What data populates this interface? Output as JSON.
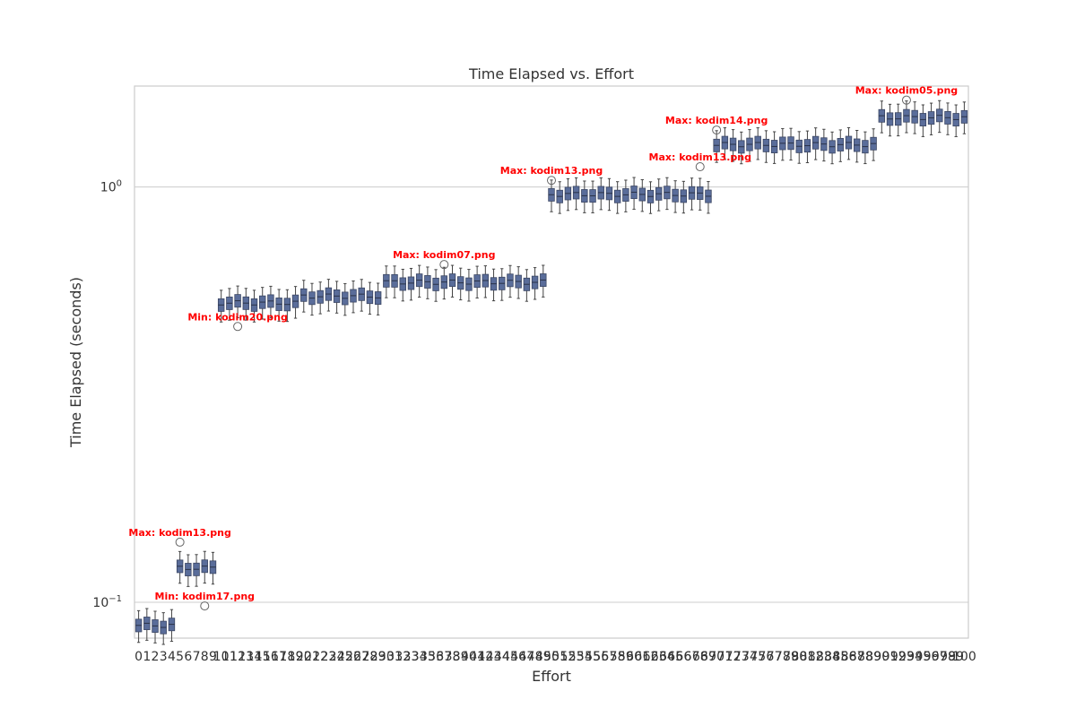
{
  "chart_data": {
    "type": "box",
    "title": "Time Elapsed vs. Effort",
    "xlabel": "Effort",
    "ylabel": "Time Elapsed (seconds)",
    "y_scale": "log",
    "ylim": [
      0.082,
      1.75
    ],
    "y_ticks": [
      {
        "value": 0.1,
        "base": "10",
        "exp": "−1"
      },
      {
        "value": 1.0,
        "base": "10",
        "exp": "0"
      }
    ],
    "grid": "horizontal",
    "box_color": "#5a6d9a",
    "annotation_color": "#ff0000",
    "categories": [
      "0",
      "1",
      "2",
      "3",
      "4",
      "5",
      "6",
      "7",
      "8",
      "9",
      "10",
      "11",
      "12",
      "13",
      "14",
      "15",
      "16",
      "17",
      "18",
      "19",
      "20",
      "21",
      "22",
      "23",
      "24",
      "25",
      "26",
      "27",
      "28",
      "29",
      "30",
      "31",
      "32",
      "33",
      "34",
      "35",
      "36",
      "37",
      "38",
      "39",
      "40",
      "41",
      "42",
      "43",
      "44",
      "45",
      "46",
      "47",
      "48",
      "49",
      "50",
      "51",
      "52",
      "53",
      "54",
      "55",
      "56",
      "57",
      "58",
      "59",
      "60",
      "61",
      "62",
      "63",
      "64",
      "65",
      "66",
      "67",
      "68",
      "69",
      "70",
      "71",
      "72",
      "73",
      "74",
      "75",
      "76",
      "77",
      "78",
      "79",
      "80",
      "81",
      "82",
      "83",
      "84",
      "85",
      "86",
      "87",
      "88",
      "89",
      "90",
      "91",
      "92",
      "93",
      "94",
      "95",
      "96",
      "97",
      "98",
      "99",
      "100"
    ],
    "median_by_effort_range": [
      {
        "efforts": "0-5",
        "median": 0.088
      },
      {
        "efforts": "5-10",
        "median": 0.121
      },
      {
        "efforts": "10-20",
        "median": 0.526
      },
      {
        "efforts": "20-30",
        "median": 0.546
      },
      {
        "efforts": "30-50",
        "median": 0.59
      },
      {
        "efforts": "50-70",
        "median": 0.96
      },
      {
        "efforts": "70-90",
        "median": 1.265
      },
      {
        "efforts": "90-100",
        "median": 1.47
      }
    ],
    "annotations": [
      {
        "text": "Max: kodim13.png",
        "effort": 5,
        "value": 0.141
      },
      {
        "text": "Max: kodim13.png",
        "effort": 50,
        "value": 1.048
      },
      {
        "text": "Max: kodim07.png",
        "effort": 37,
        "value": 0.657
      },
      {
        "text": "Max: kodim14.png",
        "effort": 70,
        "value": 1.385
      },
      {
        "text": "Max: kodim13.png",
        "effort": 68,
        "value": 1.13
      },
      {
        "text": "Max: kodim05.png",
        "effort": 93,
        "value": 1.635
      },
      {
        "text": "Min: kodim20.png",
        "effort": 12,
        "value": 0.466
      },
      {
        "text": "Min: kodim17.png",
        "effort": 8,
        "value": 0.099
      }
    ]
  }
}
